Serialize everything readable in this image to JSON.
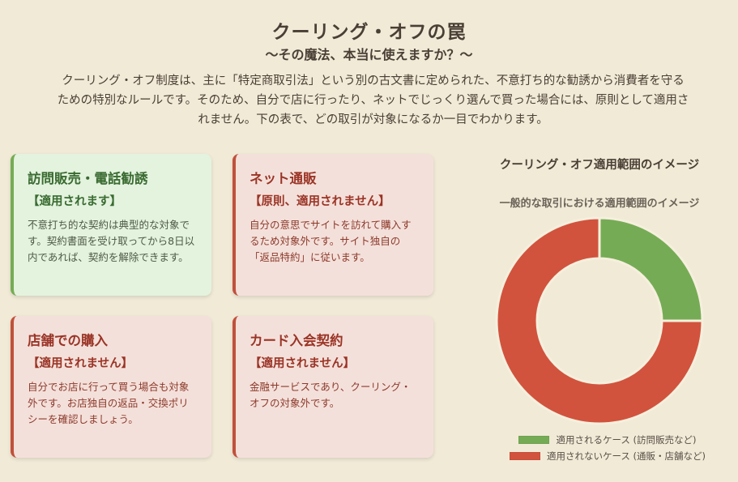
{
  "header": {
    "title": "クーリング・オフの罠",
    "subtitle": "〜その魔法、本当に使えますか？〜",
    "intro": "クーリング・オフ制度は、主に「特定商取引法」という別の古文書に定められた、不意打ち的な勧誘から消費者を守るための特別なルールです。そのため、自分で店に行ったり、ネットでじっくり選んで買った場合には、原則として適用されません。下の表で、どの取引が対象になるか一目でわかります。"
  },
  "cards": [
    {
      "title": "訪問販売・電話勧誘",
      "status": "【適用されます】",
      "body": "不意打ち的な契約は典型的な対象です。契約書面を受け取ってから8日以内であれば、契約を解除できます。",
      "kind": "green"
    },
    {
      "title": "ネット通販",
      "status": "【原則、適用されません】",
      "body": "自分の意思でサイトを訪れて購入するため対象外です。サイト独自の「返品特約」に従います。",
      "kind": "red"
    },
    {
      "title": "店舗での購入",
      "status": "【適用されません】",
      "body": "自分でお店に行って買う場合も対象外です。お店独自の返品・交換ポリシーを確認しましょう。",
      "kind": "red"
    },
    {
      "title": "カード入会契約",
      "status": "【適用されません】",
      "body": "金融サービスであり、クーリング・オフの対象外です。",
      "kind": "red"
    }
  ],
  "chart_panel": {
    "title": "クーリング・オフ適用範囲のイメージ"
  },
  "chart_data": {
    "type": "pie",
    "title": "一般的な取引における適用範囲のイメージ",
    "categories": [
      "適用されるケース (訪問販売など)",
      "適用されないケース (通販・店舗など)"
    ],
    "values": [
      25,
      75
    ],
    "colors": [
      "#76ab55",
      "#d1533d"
    ],
    "legend_position": "bottom"
  },
  "colors": {
    "background": "#f1ead7",
    "green_accent": "#76ab55",
    "red_accent": "#c0503b",
    "donut_border": "#f5efdd"
  }
}
